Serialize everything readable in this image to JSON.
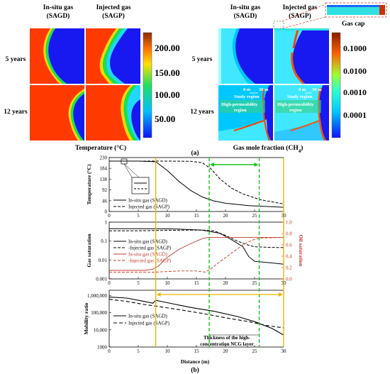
{
  "panel_a": {
    "left": {
      "col_headers": [
        [
          "In-situ gas",
          "(SAGD)"
        ],
        [
          "Injected gas",
          "(SAGP)"
        ]
      ],
      "row_labels": [
        "5 years",
        "12 years"
      ],
      "colorbar_ticks": [
        "200.00",
        "150.00",
        "100.00",
        "50.00"
      ],
      "caption": "Temperature (°C)"
    },
    "right": {
      "col_headers": [
        [
          "In-situ gas",
          "(SAGD)"
        ],
        [
          "Injected gas",
          "(SAGP)"
        ]
      ],
      "row_labels": [
        "5 years",
        "12 years"
      ],
      "colorbar_ticks": [
        "0.1000",
        "0.0100",
        "0.0010",
        "0.0001"
      ],
      "caption": "Gas mole fraction (CH",
      "caption_sub": "4",
      "caption_end": ")",
      "gas_cap": "Gas cap",
      "annotations": {
        "m0": "0 m",
        "m30": "30 m",
        "study_region": "Study region",
        "high_perm": "High-permeability",
        "region": "region"
      }
    },
    "label": "(a)"
  },
  "panel_b": {
    "label": "(b)",
    "xlabel": "Distance (m)",
    "thickness_note": [
      "Thickness of the high-",
      "concentration NCG layer"
    ]
  },
  "chart_data": [
    {
      "type": "line",
      "ylabel": "Temperature (°C)",
      "yticks": [
        230,
        184,
        138,
        92,
        46,
        0
      ],
      "ylim": [
        0,
        230
      ],
      "xticks": [
        0,
        5,
        10,
        15,
        20,
        25,
        30
      ],
      "xlim": [
        0,
        30
      ],
      "series": [
        {
          "name": "In-situ gas (SAGD)",
          "x": [
            0,
            5,
            8,
            10,
            12,
            14,
            16,
            18,
            20,
            24,
            30
          ],
          "y": [
            215,
            215,
            212,
            175,
            128,
            90,
            62,
            45,
            35,
            25,
            18
          ]
        },
        {
          "name": "Injected gas (SAGP)",
          "x": [
            0,
            10,
            14,
            16,
            17.5,
            19,
            21,
            23,
            26,
            30
          ],
          "y": [
            215,
            215,
            214,
            208,
            182,
            140,
            100,
            75,
            50,
            32
          ]
        }
      ]
    },
    {
      "type": "line",
      "ylabel": "Gas saturation",
      "y2label": "Oil saturation",
      "yticks": [
        1,
        0.1,
        0.01,
        0.001
      ],
      "ylim": [
        0.001,
        1
      ],
      "y2ticks": [
        0,
        0.2,
        0.4,
        0.6,
        0.8,
        1.0
      ],
      "y2lim": [
        0,
        1
      ],
      "xticks": [
        0,
        5,
        10,
        15,
        20,
        25,
        30
      ],
      "xlim": [
        0,
        30
      ],
      "series": [
        {
          "name": "In-situ gas (SAGD)",
          "axis": "left",
          "x": [
            0,
            5,
            8,
            12,
            16,
            19,
            21,
            23,
            24,
            25,
            27,
            30
          ],
          "y": [
            0.45,
            0.45,
            0.45,
            0.43,
            0.38,
            0.26,
            0.12,
            0.05,
            0.015,
            0.0085,
            0.0075,
            0.006
          ]
        },
        {
          "name": "Injected gas (SAGP)",
          "axis": "left",
          "x": [
            0,
            5,
            8,
            14,
            16,
            18,
            20,
            22,
            24,
            25,
            27,
            30
          ],
          "y": [
            0.35,
            0.35,
            0.36,
            0.38,
            0.38,
            0.35,
            0.2,
            0.1,
            0.06,
            0.05,
            0.047,
            0.045
          ]
        },
        {
          "name": "In-situ gas (SAGD)",
          "axis": "right",
          "x": [
            0,
            6,
            7.5,
            8.5,
            10,
            12,
            14,
            16,
            17,
            19,
            22,
            26,
            30
          ],
          "y": [
            0.15,
            0.15,
            0.17,
            0.23,
            0.38,
            0.52,
            0.62,
            0.71,
            0.73,
            0.73,
            0.73,
            0.73,
            0.73
          ]
        },
        {
          "name": "Injected gas (SAGP)",
          "axis": "right",
          "x": [
            0,
            8,
            12,
            15,
            16.5,
            17.5,
            19,
            21,
            23,
            24.5,
            26,
            30
          ],
          "y": [
            0.12,
            0.12,
            0.14,
            0.14,
            0.12,
            0.18,
            0.3,
            0.45,
            0.6,
            0.68,
            0.72,
            0.73
          ]
        }
      ]
    },
    {
      "type": "line",
      "ylabel": "Mobility ratio",
      "yticks": [
        "1,000,000",
        "100,000",
        "10,000",
        "1000"
      ],
      "ylim": [
        1000,
        2000000
      ],
      "xticks": [
        0,
        5,
        10,
        15,
        20,
        25,
        30
      ],
      "xlim": [
        0,
        30
      ],
      "series": [
        {
          "name": "In-situ gas (SAGD)",
          "x": [
            0,
            3,
            6,
            7.5,
            8,
            8.5,
            10,
            14,
            18,
            22,
            25,
            28,
            30
          ],
          "y": [
            800000,
            700000,
            450000,
            350000,
            520000,
            480000,
            380000,
            200000,
            120000,
            60000,
            30000,
            12000,
            5000
          ]
        },
        {
          "name": "Injected gas (SAGP)",
          "x": [
            0,
            3,
            6,
            8,
            12,
            16,
            20,
            24,
            27,
            30
          ],
          "y": [
            600000,
            450000,
            300000,
            240000,
            150000,
            90000,
            50000,
            30000,
            18000,
            13000
          ]
        }
      ]
    }
  ]
}
